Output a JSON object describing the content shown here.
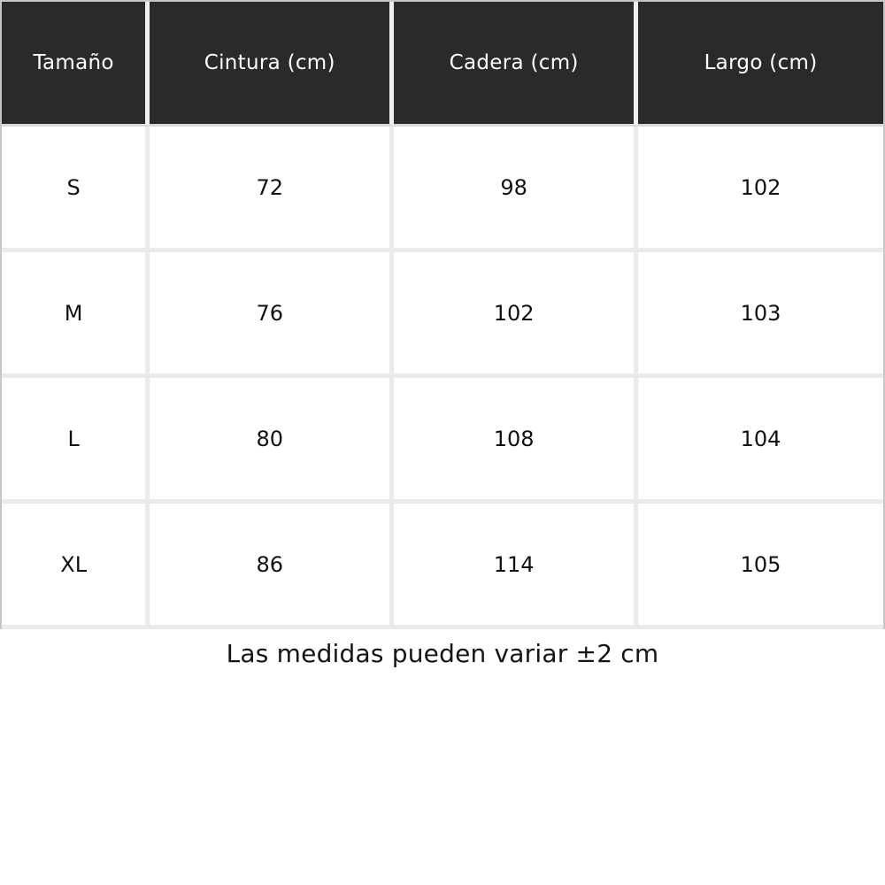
{
  "table": {
    "headers": [
      "Tamaño",
      "Cintura (cm)",
      "Cadera (cm)",
      "Largo (cm)"
    ],
    "rows": [
      [
        "S",
        "72",
        "98",
        "102"
      ],
      [
        "M",
        "76",
        "102",
        "103"
      ],
      [
        "L",
        "80",
        "108",
        "104"
      ],
      [
        "XL",
        "86",
        "114",
        "105"
      ]
    ]
  },
  "footnote": "Las medidas pueden variar ±2 cm",
  "colors": {
    "header_bg": "#2a2a2a",
    "header_text": "#ffffff",
    "body_bg": "#ffffff",
    "body_text": "#111111",
    "grid_line": "#eaeaea",
    "outer_edge": "#c6c6c6"
  },
  "chart_data": {
    "type": "table",
    "title": "",
    "columns": [
      "Tamaño",
      "Cintura (cm)",
      "Cadera (cm)",
      "Largo (cm)"
    ],
    "rows": [
      {
        "Tamaño": "S",
        "Cintura (cm)": 72,
        "Cadera (cm)": 98,
        "Largo (cm)": 102
      },
      {
        "Tamaño": "M",
        "Cintura (cm)": 76,
        "Cadera (cm)": 102,
        "Largo (cm)": 103
      },
      {
        "Tamaño": "L",
        "Cintura (cm)": 80,
        "Cadera (cm)": 108,
        "Largo (cm)": 104
      },
      {
        "Tamaño": "XL",
        "Cintura (cm)": 86,
        "Cadera (cm)": 114,
        "Largo (cm)": 105
      }
    ],
    "note": "Las medidas pueden variar ±2 cm"
  }
}
